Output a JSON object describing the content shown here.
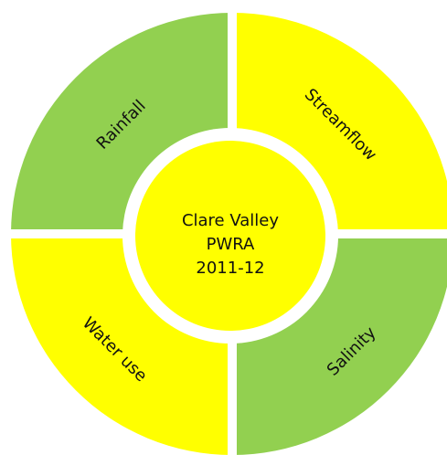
{
  "nodes": [
    {
      "label": "Rainfall"
    },
    {
      "label": "Streamflow"
    },
    {
      "label": "Water use"
    },
    {
      "label": "Salinity"
    }
  ],
  "center": {
    "lines": [
      "Clare Valley",
      "PWRA",
      "2011-12"
    ]
  }
}
